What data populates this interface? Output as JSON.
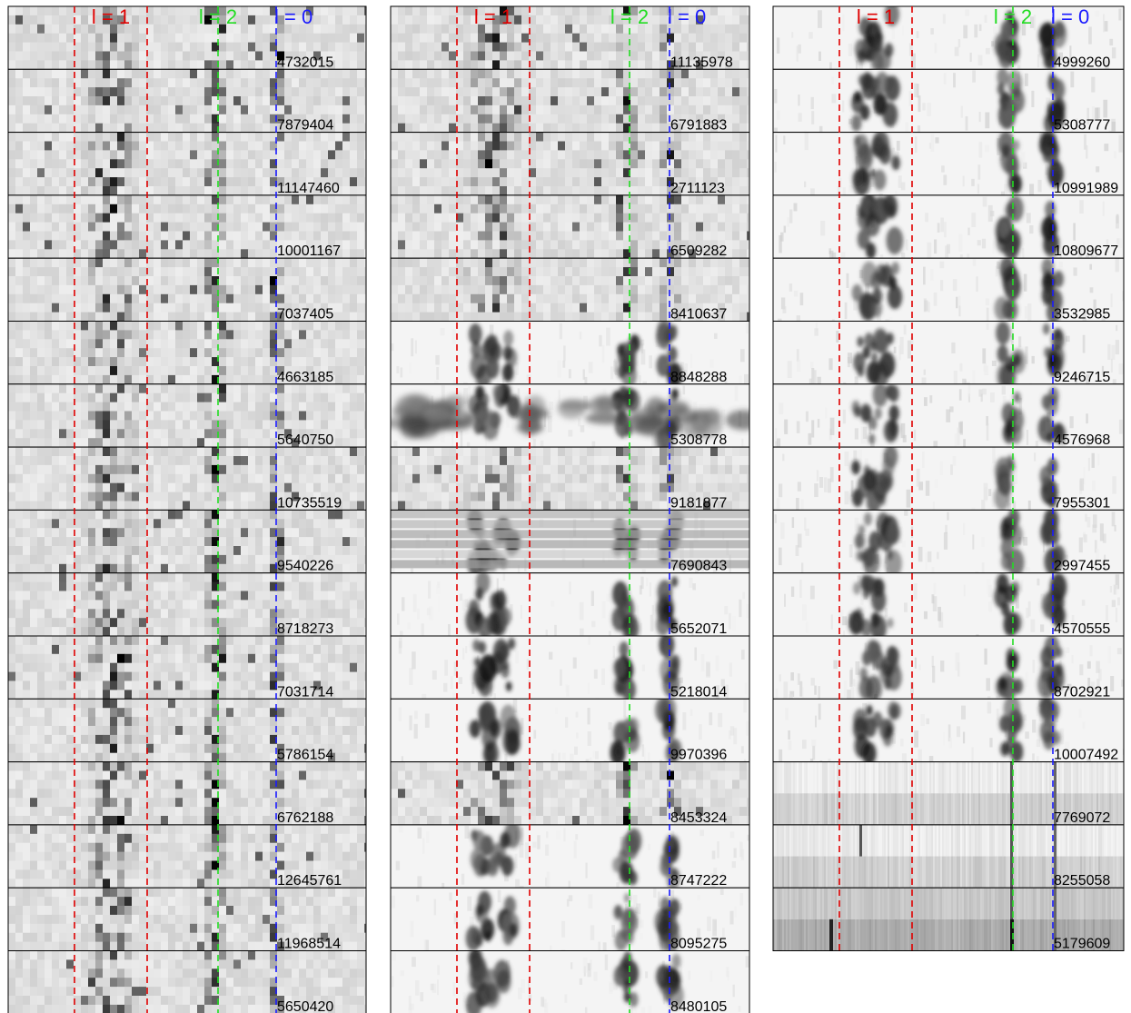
{
  "colors": {
    "l1": "#e00000",
    "l2": "#22dd22",
    "l0": "#1a1aff",
    "frame": "#000000"
  },
  "headers": {
    "l1": "l = 1",
    "l2": "l = 2",
    "l0": "l = 0"
  },
  "columns": [
    {
      "ids": [
        "4732015",
        "7879404",
        "11147460",
        "10001167",
        "7037405",
        "4663185",
        "5640750",
        "10735519",
        "9540226",
        "8718273",
        "7031714",
        "5786154",
        "6762188",
        "12645761",
        "11968514",
        "5650420"
      ],
      "texture": "blocky"
    },
    {
      "ids": [
        "11135978",
        "6791883",
        "2711123",
        "6509282",
        "8410637",
        "8848288",
        "5308778",
        "9181877",
        "7690843",
        "5652071",
        "5218014",
        "9970396",
        "8453324",
        "8747222",
        "8095275",
        "8480105"
      ],
      "texture": "mixed"
    },
    {
      "ids": [
        "4999260",
        "5308777",
        "10991989",
        "10809677",
        "3532985",
        "9246715",
        "4576968",
        "7955301",
        "2997455",
        "4570555",
        "8702921",
        "10007492",
        "7769072",
        "8255058",
        "5179609"
      ],
      "texture": "smooth"
    }
  ]
}
